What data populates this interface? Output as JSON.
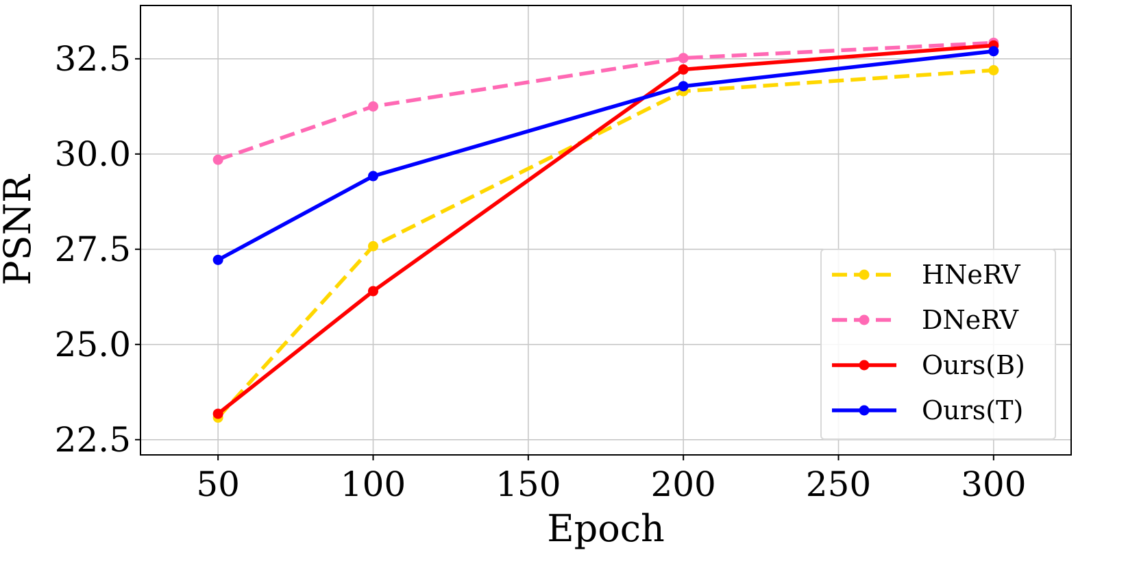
{
  "chart_data": {
    "type": "line",
    "title": "",
    "xlabel": "Epoch",
    "ylabel": "PSNR",
    "xlim": [
      25,
      325
    ],
    "ylim": [
      22.1,
      33.9
    ],
    "xticks": [
      50,
      100,
      150,
      200,
      250,
      300
    ],
    "yticks": [
      22.5,
      25.0,
      27.5,
      30.0,
      32.5
    ],
    "xtick_labels": [
      "50",
      "100",
      "150",
      "200",
      "250",
      "300"
    ],
    "ytick_labels": [
      "22.5",
      "25.0",
      "27.5",
      "30.0",
      "32.5"
    ],
    "grid": true,
    "legend_position": "lower-right",
    "x": [
      50,
      100,
      200,
      300
    ],
    "series": [
      {
        "name": "HNeRV",
        "values": [
          23.08,
          27.58,
          31.65,
          32.2
        ],
        "color": "#FFD700",
        "linestyle": "dashed"
      },
      {
        "name": "DNeRV",
        "values": [
          29.85,
          31.25,
          32.52,
          32.92
        ],
        "color": "#FF69B4",
        "linestyle": "dashed"
      },
      {
        "name": "Ours(B)",
        "values": [
          23.18,
          26.4,
          32.22,
          32.85
        ],
        "color": "#FF0000",
        "linestyle": "solid"
      },
      {
        "name": "Ours(T)",
        "values": [
          27.22,
          29.42,
          31.78,
          32.7
        ],
        "color": "#0000FF",
        "linestyle": "solid"
      }
    ]
  }
}
